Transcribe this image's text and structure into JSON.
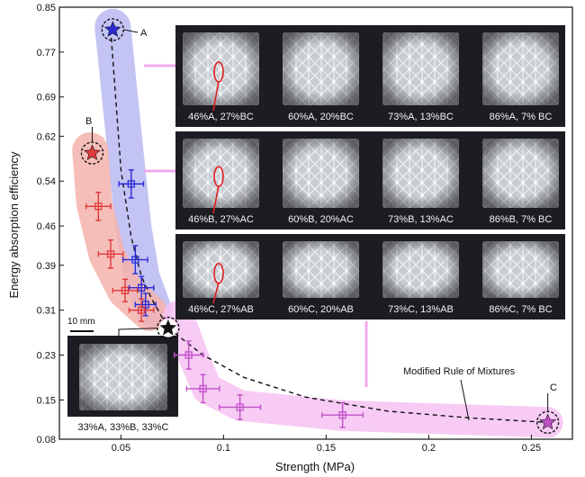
{
  "chart_data": {
    "type": "scatter",
    "title": "",
    "xlabel": "Strength (MPa)",
    "ylabel": "Energy absorption efficiency",
    "xlim": [
      0.02,
      0.27
    ],
    "ylim": [
      0.08,
      0.85
    ],
    "x_ticks": [
      0.05,
      0.1,
      0.15,
      0.2,
      0.25
    ],
    "x_tick_labels": [
      "0.05",
      "0.1",
      "0.15",
      "0.2",
      "0.25"
    ],
    "y_ticks": [
      0.08,
      0.15,
      0.23,
      0.31,
      0.39,
      0.46,
      0.54,
      0.62,
      0.69,
      0.77,
      0.85
    ],
    "y_tick_labels": [
      "0.08",
      "0.15",
      "0.23",
      "0.31",
      "0.39",
      "0.46",
      "0.54",
      "0.62",
      "0.69",
      "0.77",
      "0.85"
    ],
    "grid": false,
    "colors": {
      "A": "#2a2ad6",
      "B": "#e03a3a",
      "C": "#c050c8",
      "mix": "#111111",
      "band_A": "#b9b9f2",
      "band_B": "#f5b3ad",
      "band_C": "#f6c2f2"
    },
    "series": [
      {
        "key": "A",
        "points": [
          {
            "x": 0.046,
            "y": 0.81,
            "marker": "star"
          },
          {
            "x": 0.055,
            "y": 0.535,
            "xerr": 0.006,
            "yerr": 0.025
          },
          {
            "x": 0.057,
            "y": 0.4,
            "xerr": 0.006,
            "yerr": 0.025
          },
          {
            "x": 0.06,
            "y": 0.35,
            "xerr": 0.006,
            "yerr": 0.02
          },
          {
            "x": 0.062,
            "y": 0.32,
            "xerr": 0.005,
            "yerr": 0.02
          }
        ]
      },
      {
        "key": "B",
        "points": [
          {
            "x": 0.036,
            "y": 0.59,
            "marker": "star"
          },
          {
            "x": 0.039,
            "y": 0.495,
            "xerr": 0.006,
            "yerr": 0.025
          },
          {
            "x": 0.045,
            "y": 0.41,
            "xerr": 0.006,
            "yerr": 0.025
          },
          {
            "x": 0.052,
            "y": 0.345,
            "xerr": 0.006,
            "yerr": 0.02
          },
          {
            "x": 0.06,
            "y": 0.31,
            "xerr": 0.006,
            "yerr": 0.02
          }
        ]
      },
      {
        "key": "C",
        "points": [
          {
            "x": 0.258,
            "y": 0.11,
            "marker": "star"
          },
          {
            "x": 0.158,
            "y": 0.123,
            "xerr": 0.01,
            "yerr": 0.022
          },
          {
            "x": 0.108,
            "y": 0.137,
            "xerr": 0.01,
            "yerr": 0.022
          },
          {
            "x": 0.09,
            "y": 0.17,
            "xerr": 0.008,
            "yerr": 0.025
          },
          {
            "x": 0.083,
            "y": 0.23,
            "xerr": 0.007,
            "yerr": 0.025
          }
        ]
      }
    ],
    "mix_point": {
      "x": 0.073,
      "y": 0.278,
      "marker": "star",
      "label": "33%A, 33%B, 33%C"
    },
    "fit_curve": {
      "label": "Modified Rule of Mixtures",
      "x": [
        0.045,
        0.05,
        0.055,
        0.06,
        0.065,
        0.073,
        0.09,
        0.11,
        0.14,
        0.18,
        0.22,
        0.258
      ],
      "y": [
        0.81,
        0.56,
        0.44,
        0.37,
        0.33,
        0.278,
        0.23,
        0.19,
        0.155,
        0.13,
        0.118,
        0.11
      ]
    },
    "point_labels": {
      "A": "A",
      "B": "B",
      "C": "C"
    },
    "scale_bar": "10 mm",
    "inset_rows": [
      [
        "46%A, 27%BC",
        "60%A, 20%BC",
        "73%A, 13%BC",
        "86%A, 7% BC"
      ],
      [
        "46%B, 27%AC",
        "60%B, 20%AC",
        "73%B, 13%AC",
        "86%B, 7% BC"
      ],
      [
        "46%C, 27%AB",
        "60%C, 20%AB",
        "73%C, 13%AB",
        "86%C, 7% BC"
      ]
    ]
  }
}
